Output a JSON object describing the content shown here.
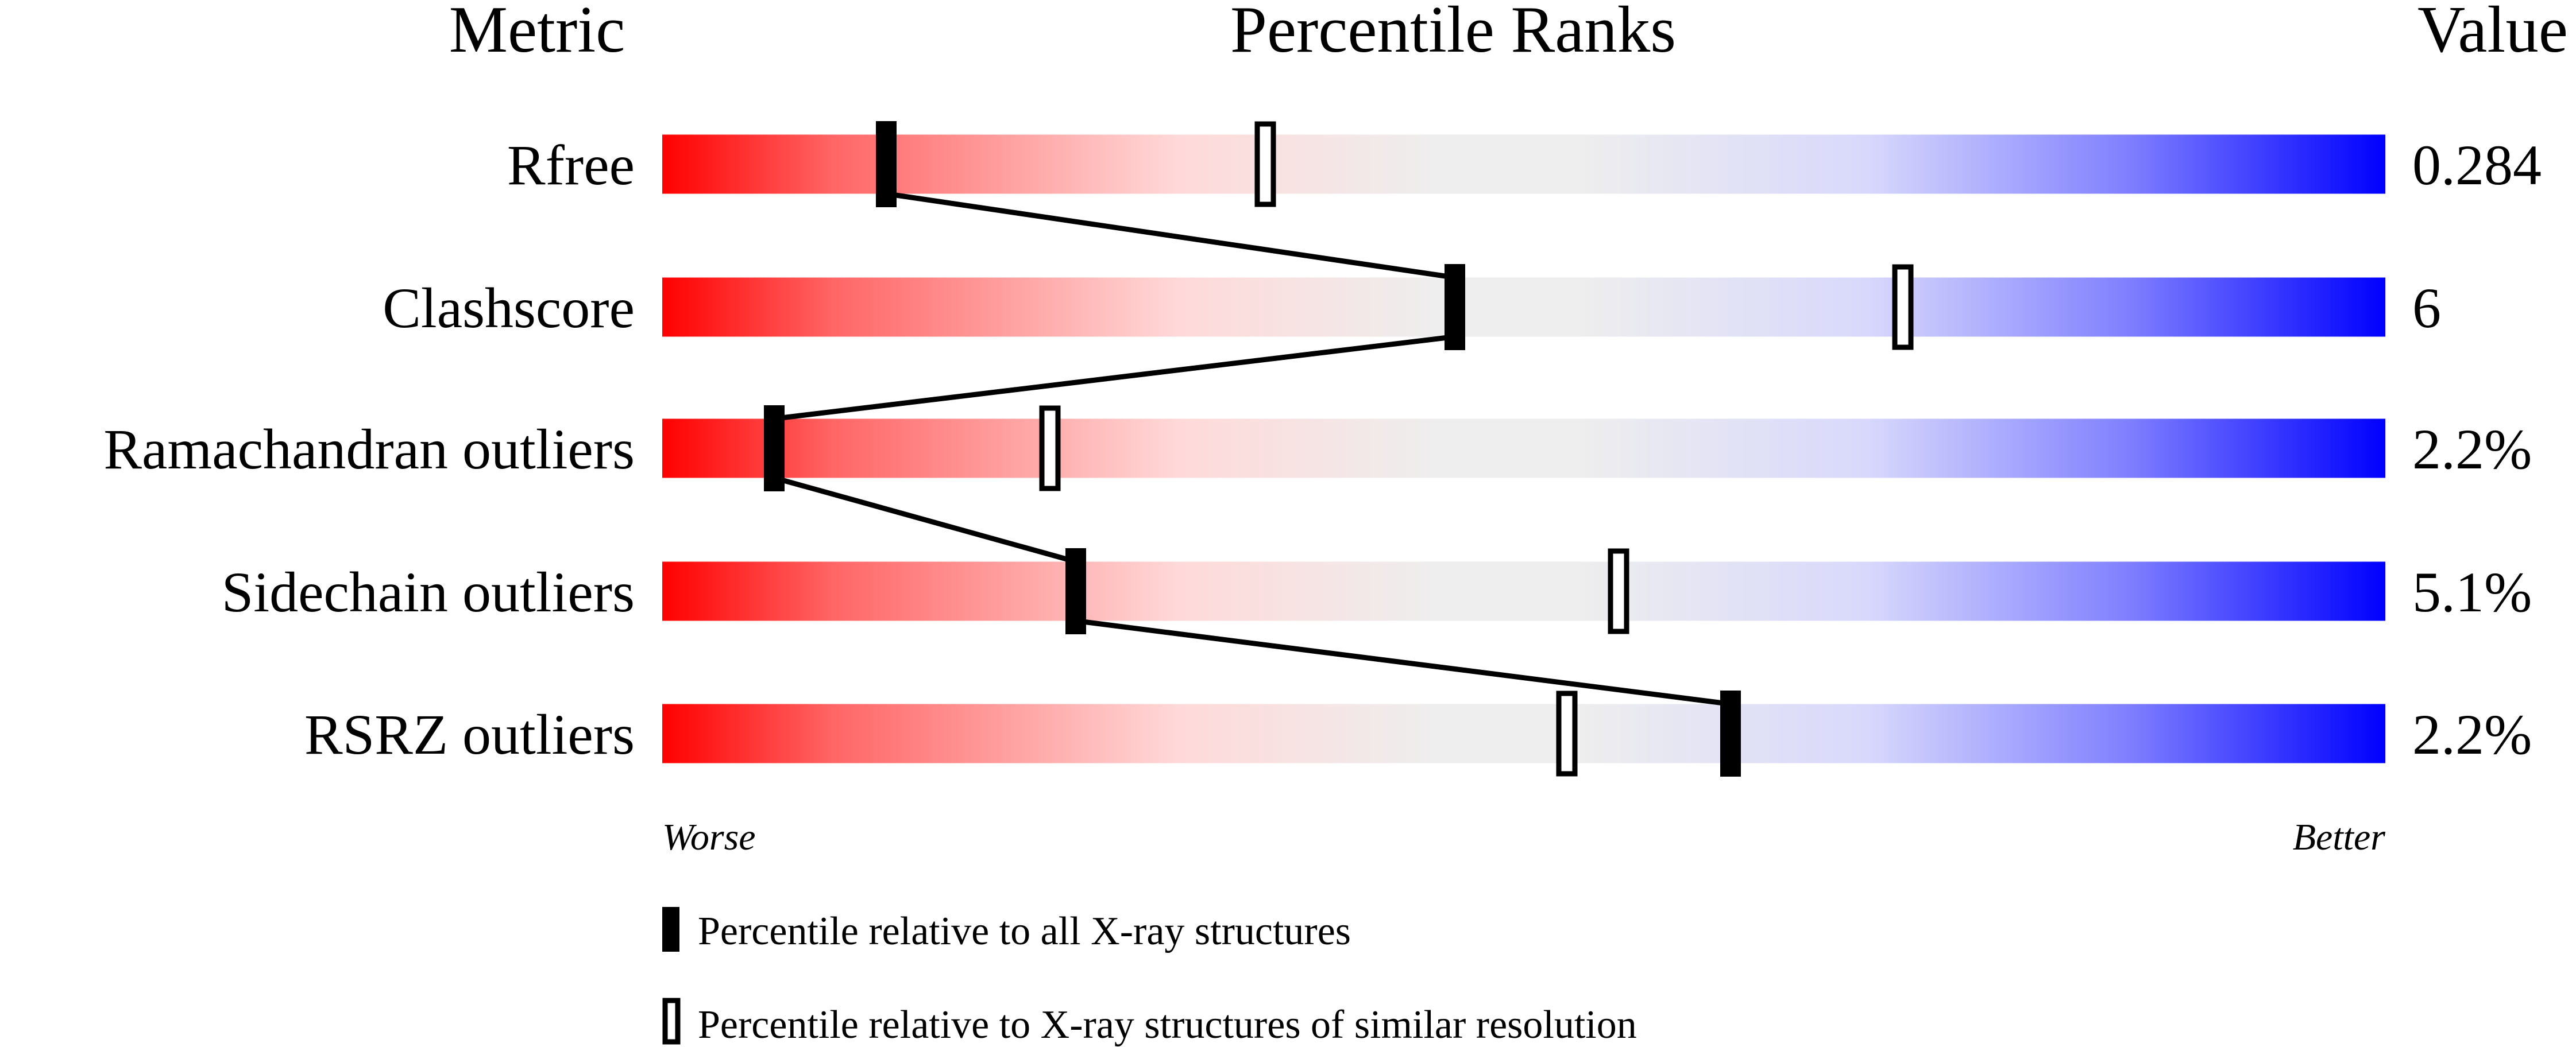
{
  "chart_data": {
    "type": "percentile-slider",
    "headers": {
      "metric": "Metric",
      "ranks": "Percentile Ranks",
      "value": "Value"
    },
    "xlim": [
      0,
      100
    ],
    "axis_labels": {
      "left": "Worse",
      "right": "Better"
    },
    "gradient_colors": [
      "#ff0000",
      "#ffd9d9",
      "#eeeeee",
      "#dcdcfa",
      "#0000ff"
    ],
    "metrics": [
      {
        "name": "Rfree",
        "value": "0.284",
        "percentile_all": 13,
        "percentile_similar": 35
      },
      {
        "name": "Clashscore",
        "value": "6",
        "percentile_all": 46,
        "percentile_similar": 72
      },
      {
        "name": "Ramachandran outliers",
        "value": "2.2%",
        "percentile_all": 6.5,
        "percentile_similar": 22.5
      },
      {
        "name": "Sidechain outliers",
        "value": "5.1%",
        "percentile_all": 24,
        "percentile_similar": 55.5
      },
      {
        "name": "RSRZ outliers",
        "value": "2.2%",
        "percentile_all": 62,
        "percentile_similar": 52.5
      }
    ],
    "legend": {
      "all": "Percentile relative to all X-ray structures",
      "similar": "Percentile relative to X-ray structures of similar resolution"
    }
  }
}
